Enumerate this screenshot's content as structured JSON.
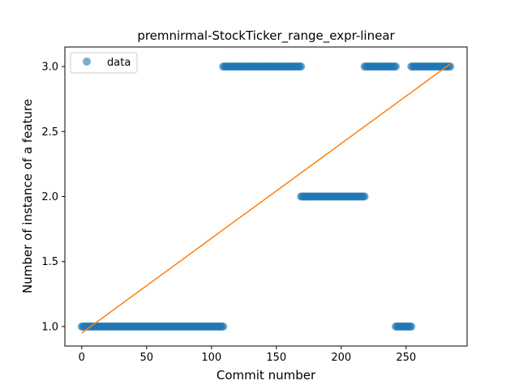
{
  "chart_data": {
    "type": "scatter",
    "title": "premnirmal-StockTicker_range_expr-linear",
    "xlabel": "Commit number",
    "ylabel": "Number of instance of a feature",
    "xlim": [
      -13,
      297
    ],
    "ylim": [
      0.85,
      3.15
    ],
    "xticks": [
      0,
      50,
      100,
      150,
      200,
      250
    ],
    "yticks": [
      1.0,
      1.5,
      2.0,
      2.5,
      3.0
    ],
    "xtick_labels": [
      "0",
      "50",
      "100",
      "150",
      "200",
      "250"
    ],
    "ytick_labels": [
      "1.0",
      "1.5",
      "2.0",
      "2.5",
      "3.0"
    ],
    "grid": false,
    "legend": {
      "position": "top-left",
      "entries": [
        "data"
      ]
    },
    "series": [
      {
        "name": "data",
        "marker": "circle",
        "color": "#1f77b4",
        "alpha": 0.6,
        "segments": [
          {
            "x_start": 0,
            "x_end": 109,
            "y": 1.0
          },
          {
            "x_start": 109,
            "x_end": 169,
            "y": 3.0
          },
          {
            "x_start": 169,
            "x_end": 218,
            "y": 2.0
          },
          {
            "x_start": 218,
            "x_end": 242,
            "y": 3.0
          },
          {
            "x_start": 242,
            "x_end": 254,
            "y": 1.0
          },
          {
            "x_start": 254,
            "x_end": 284,
            "y": 3.0
          }
        ]
      }
    ],
    "fit_line": {
      "color": "#ff7f0e",
      "points": [
        [
          0,
          0.95
        ],
        [
          284,
          3.02
        ]
      ]
    }
  }
}
